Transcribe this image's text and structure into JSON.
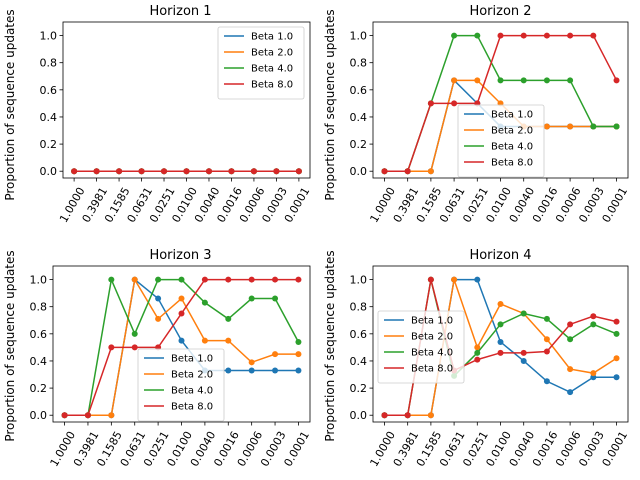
{
  "chart_data": [
    {
      "type": "line",
      "title": "Horizon 1",
      "ylabel": "Proportion of sequence updates",
      "xlabel": "",
      "categories": [
        "1.0000",
        "0.3981",
        "0.1585",
        "0.0631",
        "0.0251",
        "0.0100",
        "0.0040",
        "0.0016",
        "0.0006",
        "0.0003",
        "0.0001"
      ],
      "ylim": [
        -0.05,
        1.1
      ],
      "yticks": [
        0.0,
        0.2,
        0.4,
        0.6,
        0.8,
        1.0
      ],
      "legend_loc": "upper-right",
      "series": [
        {
          "name": "Beta 1.0",
          "color": "#1f77b4",
          "values": [
            0,
            0,
            0,
            0,
            0,
            0,
            0,
            0,
            0,
            0,
            0
          ]
        },
        {
          "name": "Beta 2.0",
          "color": "#ff7f0e",
          "values": [
            0,
            0,
            0,
            0,
            0,
            0,
            0,
            0,
            0,
            0,
            0
          ]
        },
        {
          "name": "Beta 4.0",
          "color": "#2ca02c",
          "values": [
            0,
            0,
            0,
            0,
            0,
            0,
            0,
            0,
            0,
            0,
            0
          ]
        },
        {
          "name": "Beta 8.0",
          "color": "#d62728",
          "values": [
            0,
            0,
            0,
            0,
            0,
            0,
            0,
            0,
            0,
            0,
            0
          ]
        }
      ]
    },
    {
      "type": "line",
      "title": "Horizon 2",
      "ylabel": "Proportion of sequence updates",
      "xlabel": "",
      "categories": [
        "1.0000",
        "0.3981",
        "0.1585",
        "0.0631",
        "0.0251",
        "0.0100",
        "0.0040",
        "0.0016",
        "0.0006",
        "0.0003",
        "0.0001"
      ],
      "ylim": [
        -0.05,
        1.1
      ],
      "yticks": [
        0.0,
        0.2,
        0.4,
        0.6,
        0.8,
        1.0
      ],
      "legend_loc": "lower-center",
      "series": [
        {
          "name": "Beta 1.0",
          "color": "#1f77b4",
          "values": [
            0,
            0,
            0,
            0.67,
            0.5,
            0.33,
            0.33,
            0.33,
            0.33,
            0.33,
            0.33
          ]
        },
        {
          "name": "Beta 2.0",
          "color": "#ff7f0e",
          "values": [
            0,
            0,
            0,
            0.67,
            0.67,
            0.5,
            0.33,
            0.33,
            0.33,
            0.33,
            0.33
          ]
        },
        {
          "name": "Beta 4.0",
          "color": "#2ca02c",
          "values": [
            0,
            0,
            0.5,
            1.0,
            1.0,
            0.67,
            0.67,
            0.67,
            0.67,
            0.33,
            0.33
          ]
        },
        {
          "name": "Beta 8.0",
          "color": "#d62728",
          "values": [
            0,
            0,
            0.5,
            0.5,
            0.5,
            1.0,
            1.0,
            1.0,
            1.0,
            1.0,
            0.67
          ]
        }
      ]
    },
    {
      "type": "line",
      "title": "Horizon 3",
      "ylabel": "Proportion of sequence updates",
      "xlabel": "",
      "categories": [
        "1.0000",
        "0.3981",
        "0.1585",
        "0.0631",
        "0.0251",
        "0.0100",
        "0.0040",
        "0.0016",
        "0.0006",
        "0.0003",
        "0.0001"
      ],
      "ylim": [
        -0.05,
        1.1
      ],
      "yticks": [
        0.0,
        0.2,
        0.4,
        0.6,
        0.8,
        1.0
      ],
      "legend_loc": "lower-center",
      "series": [
        {
          "name": "Beta 1.0",
          "color": "#1f77b4",
          "values": [
            0,
            0,
            0,
            1.0,
            0.86,
            0.55,
            0.33,
            0.33,
            0.33,
            0.33,
            0.33
          ]
        },
        {
          "name": "Beta 2.0",
          "color": "#ff7f0e",
          "values": [
            0,
            0,
            0,
            1.0,
            0.71,
            0.86,
            0.55,
            0.55,
            0.39,
            0.45,
            0.45
          ]
        },
        {
          "name": "Beta 4.0",
          "color": "#2ca02c",
          "values": [
            0,
            0,
            1.0,
            0.6,
            1.0,
            1.0,
            0.83,
            0.71,
            0.86,
            0.86,
            0.54
          ]
        },
        {
          "name": "Beta 8.0",
          "color": "#d62728",
          "values": [
            0,
            0,
            0.5,
            0.5,
            0.5,
            0.75,
            1.0,
            1.0,
            1.0,
            1.0,
            1.0
          ]
        }
      ]
    },
    {
      "type": "line",
      "title": "Horizon 4",
      "ylabel": "Proportion of sequence updates",
      "xlabel": "",
      "categories": [
        "1.0000",
        "0.3981",
        "0.1585",
        "0.0631",
        "0.0251",
        "0.0100",
        "0.0040",
        "0.0016",
        "0.0006",
        "0.0003",
        "0.0001"
      ],
      "ylim": [
        -0.05,
        1.1
      ],
      "yticks": [
        0.0,
        0.2,
        0.4,
        0.6,
        0.8,
        1.0
      ],
      "legend_loc": "center-left",
      "series": [
        {
          "name": "Beta 1.0",
          "color": "#1f77b4",
          "values": [
            0,
            0,
            0,
            1.0,
            1.0,
            0.54,
            0.4,
            0.25,
            0.17,
            0.28,
            0.28
          ]
        },
        {
          "name": "Beta 2.0",
          "color": "#ff7f0e",
          "values": [
            0,
            0,
            0,
            1.0,
            0.5,
            0.82,
            0.75,
            0.56,
            0.34,
            0.31,
            0.42
          ]
        },
        {
          "name": "Beta 4.0",
          "color": "#2ca02c",
          "values": [
            0,
            0,
            1.0,
            0.29,
            0.46,
            0.67,
            0.75,
            0.71,
            0.56,
            0.67,
            0.6
          ]
        },
        {
          "name": "Beta 8.0",
          "color": "#d62728",
          "values": [
            0,
            0,
            1.0,
            0.33,
            0.41,
            0.46,
            0.46,
            0.47,
            0.67,
            0.73,
            0.69
          ]
        }
      ]
    }
  ]
}
